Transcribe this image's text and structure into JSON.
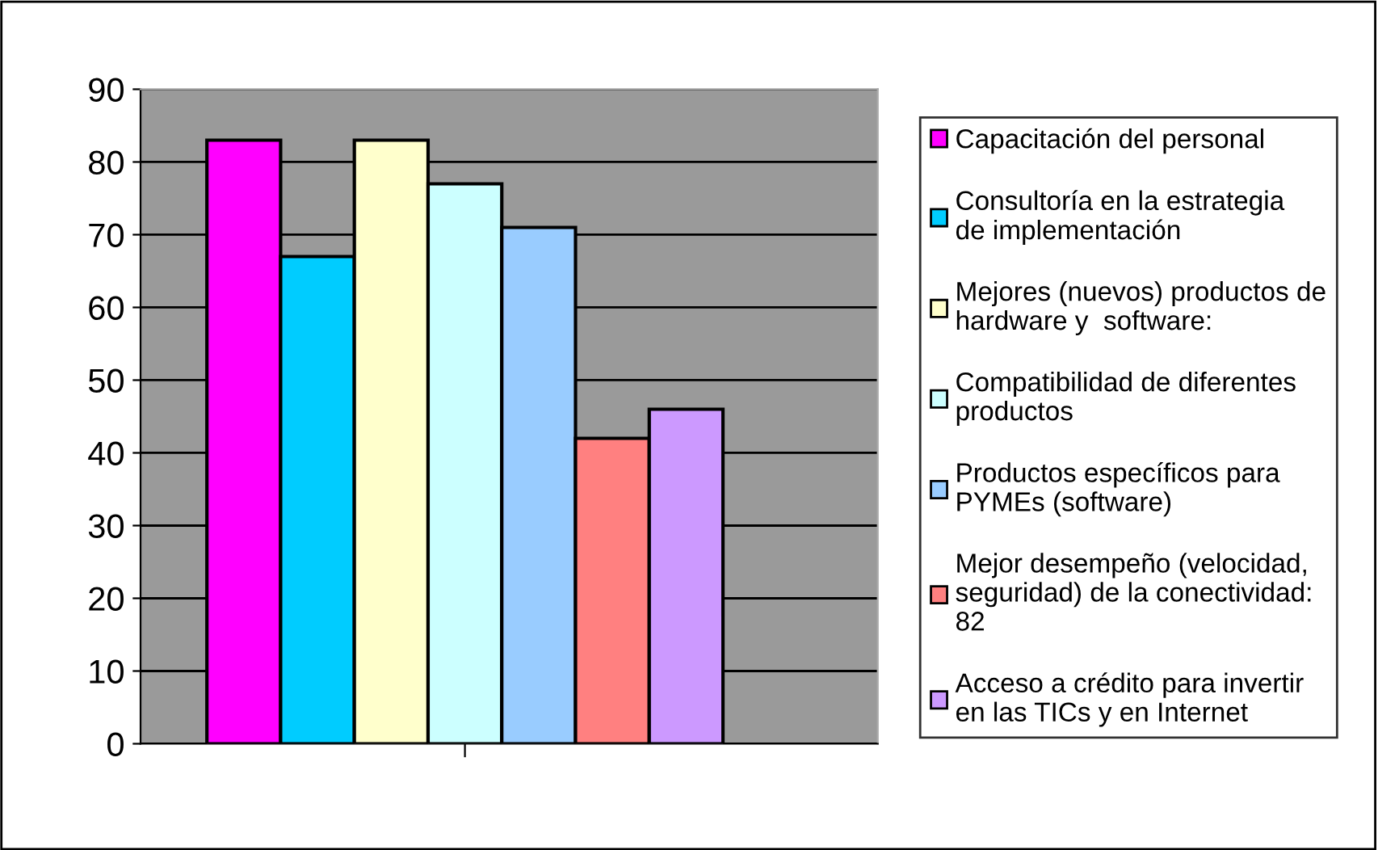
{
  "chart_data": {
    "type": "bar",
    "categories": [
      null
    ],
    "ylim": [
      0,
      90
    ],
    "yticks": [
      0,
      10,
      20,
      30,
      40,
      50,
      60,
      70,
      80,
      90
    ],
    "grid": "y",
    "legend": "right",
    "series": [
      {
        "name": "Capacitación del personal",
        "color": "#ff00ff",
        "values": [
          83
        ]
      },
      {
        "name": "Consultoría en la estrategia de implementación",
        "color": "#00ccff",
        "values": [
          67
        ]
      },
      {
        "name": "Mejores (nuevos) productos de hardware y  software:",
        "color": "#ffffcc",
        "values": [
          83
        ]
      },
      {
        "name": "Compatibilidad de diferentes productos",
        "color": "#ccffff",
        "values": [
          77
        ]
      },
      {
        "name": "Productos específicos para PYMEs (software)",
        "color": "#99ccff",
        "values": [
          71
        ]
      },
      {
        "name": "Mejor desempeño (velocidad, seguridad) de la conectividad: 82",
        "color": "#ff8080",
        "values": [
          42
        ]
      },
      {
        "name": "Acceso a crédito para invertir en las TICs y en Internet",
        "color": "#cc99ff",
        "values": [
          46
        ]
      }
    ]
  }
}
